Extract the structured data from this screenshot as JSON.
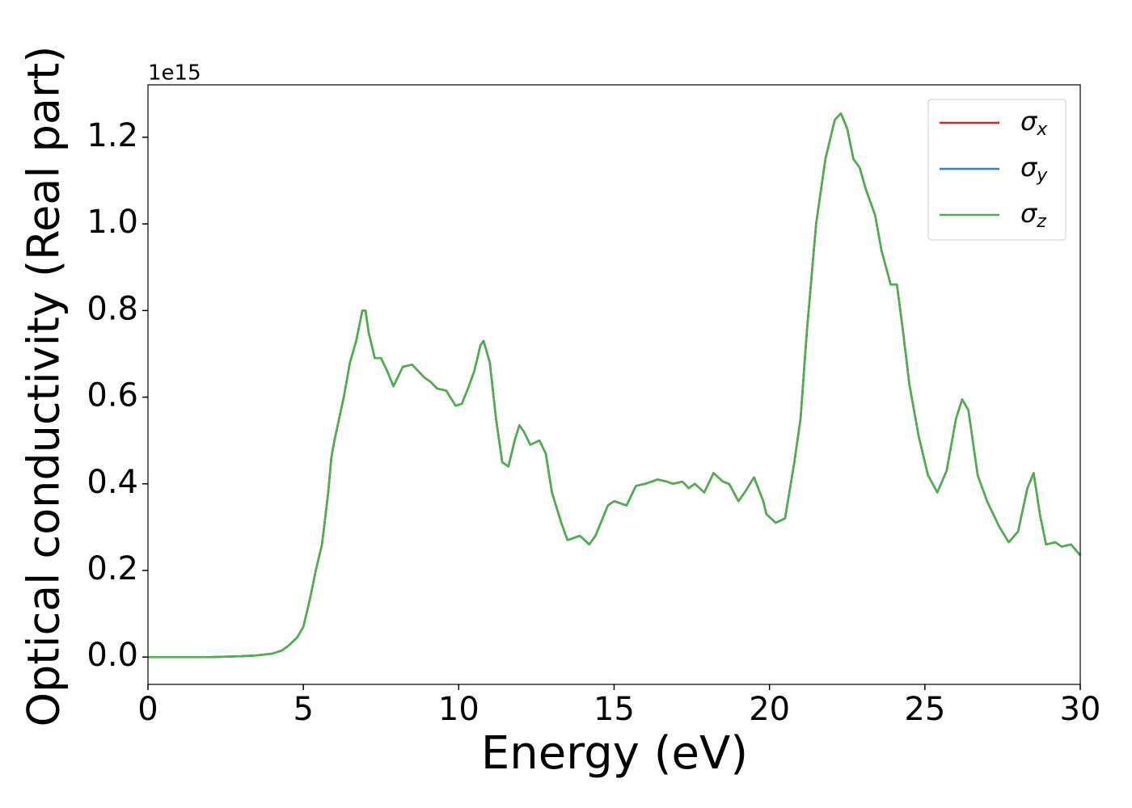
{
  "chart_data": {
    "type": "line",
    "xlabel": "Energy (eV)",
    "ylabel": "Optical conductivity (Real part)",
    "y_offset_label": "1e15",
    "x": [
      0,
      1,
      2,
      3,
      3.5,
      4,
      4.3,
      4.5,
      4.8,
      5,
      5.2,
      5.4,
      5.6,
      5.8,
      5.9,
      6,
      6.3,
      6.5,
      6.7,
      6.9,
      7,
      7.1,
      7.3,
      7.5,
      7.7,
      7.9,
      8,
      8.2,
      8.5,
      8.7,
      8.9,
      9.1,
      9.3,
      9.6,
      9.9,
      10.1,
      10.3,
      10.5,
      10.7,
      10.8,
      11,
      11.2,
      11.4,
      11.6,
      11.8,
      11.95,
      12.1,
      12.3,
      12.6,
      12.8,
      13,
      13.3,
      13.5,
      13.9,
      14.2,
      14.4,
      14.8,
      15,
      15.4,
      15.7,
      16,
      16.4,
      16.7,
      16.9,
      17.2,
      17.4,
      17.6,
      17.9,
      18.2,
      18.5,
      18.7,
      19,
      19.2,
      19.5,
      19.8,
      19.9,
      20.2,
      20.5,
      20.8,
      21,
      21.2,
      21.5,
      21.8,
      22.1,
      22.3,
      22.5,
      22.7,
      22.9,
      23.1,
      23.4,
      23.6,
      23.9,
      24.1,
      24.3,
      24.5,
      24.8,
      25.1,
      25.4,
      25.7,
      26,
      26.2,
      26.4,
      26.7,
      27,
      27.4,
      27.7,
      28,
      28.3,
      28.5,
      28.7,
      28.9,
      29.2,
      29.4,
      29.7,
      30
    ],
    "series": [
      {
        "name": "σx",
        "color": "#d62728",
        "values": [
          0,
          0,
          0,
          0.002,
          0.004,
          0.008,
          0.015,
          0.025,
          0.045,
          0.07,
          0.13,
          0.2,
          0.26,
          0.38,
          0.46,
          0.5,
          0.6,
          0.68,
          0.73,
          0.8,
          0.8,
          0.75,
          0.69,
          0.69,
          0.66,
          0.625,
          0.64,
          0.67,
          0.675,
          0.66,
          0.645,
          0.635,
          0.62,
          0.615,
          0.58,
          0.585,
          0.62,
          0.66,
          0.72,
          0.73,
          0.68,
          0.55,
          0.45,
          0.44,
          0.5,
          0.535,
          0.52,
          0.49,
          0.5,
          0.47,
          0.38,
          0.31,
          0.27,
          0.28,
          0.26,
          0.28,
          0.35,
          0.36,
          0.35,
          0.395,
          0.4,
          0.41,
          0.405,
          0.4,
          0.405,
          0.39,
          0.4,
          0.38,
          0.425,
          0.405,
          0.4,
          0.36,
          0.38,
          0.415,
          0.36,
          0.33,
          0.31,
          0.32,
          0.45,
          0.55,
          0.75,
          1.0,
          1.15,
          1.24,
          1.255,
          1.22,
          1.15,
          1.13,
          1.08,
          1.02,
          0.94,
          0.86,
          0.86,
          0.75,
          0.63,
          0.51,
          0.42,
          0.38,
          0.43,
          0.55,
          0.595,
          0.57,
          0.42,
          0.36,
          0.3,
          0.265,
          0.29,
          0.39,
          0.425,
          0.33,
          0.26,
          0.265,
          0.255,
          0.26,
          0.235
        ]
      },
      {
        "name": "σy",
        "color": "#377eb8",
        "values": [
          0,
          0,
          0,
          0.002,
          0.004,
          0.008,
          0.015,
          0.025,
          0.045,
          0.07,
          0.13,
          0.2,
          0.26,
          0.38,
          0.46,
          0.5,
          0.6,
          0.68,
          0.73,
          0.8,
          0.8,
          0.75,
          0.69,
          0.69,
          0.66,
          0.625,
          0.64,
          0.67,
          0.675,
          0.66,
          0.645,
          0.635,
          0.62,
          0.615,
          0.58,
          0.585,
          0.62,
          0.66,
          0.72,
          0.73,
          0.68,
          0.55,
          0.45,
          0.44,
          0.5,
          0.535,
          0.52,
          0.49,
          0.5,
          0.47,
          0.38,
          0.31,
          0.27,
          0.28,
          0.26,
          0.28,
          0.35,
          0.36,
          0.35,
          0.395,
          0.4,
          0.41,
          0.405,
          0.4,
          0.405,
          0.39,
          0.4,
          0.38,
          0.425,
          0.405,
          0.4,
          0.36,
          0.38,
          0.415,
          0.36,
          0.33,
          0.31,
          0.32,
          0.45,
          0.55,
          0.75,
          1.0,
          1.15,
          1.24,
          1.255,
          1.22,
          1.15,
          1.13,
          1.08,
          1.02,
          0.94,
          0.86,
          0.86,
          0.75,
          0.63,
          0.51,
          0.42,
          0.38,
          0.43,
          0.55,
          0.595,
          0.57,
          0.42,
          0.36,
          0.3,
          0.265,
          0.29,
          0.39,
          0.425,
          0.33,
          0.26,
          0.265,
          0.255,
          0.26,
          0.235
        ]
      },
      {
        "name": "σz",
        "color": "#4daf4a",
        "values": [
          0,
          0,
          0,
          0.002,
          0.004,
          0.008,
          0.015,
          0.025,
          0.045,
          0.07,
          0.13,
          0.2,
          0.26,
          0.38,
          0.46,
          0.5,
          0.6,
          0.68,
          0.73,
          0.8,
          0.8,
          0.75,
          0.69,
          0.69,
          0.66,
          0.625,
          0.64,
          0.67,
          0.675,
          0.66,
          0.645,
          0.635,
          0.62,
          0.615,
          0.58,
          0.585,
          0.62,
          0.66,
          0.72,
          0.73,
          0.68,
          0.55,
          0.45,
          0.44,
          0.5,
          0.535,
          0.52,
          0.49,
          0.5,
          0.47,
          0.38,
          0.31,
          0.27,
          0.28,
          0.26,
          0.28,
          0.35,
          0.36,
          0.35,
          0.395,
          0.4,
          0.41,
          0.405,
          0.4,
          0.405,
          0.39,
          0.4,
          0.38,
          0.425,
          0.405,
          0.4,
          0.36,
          0.38,
          0.415,
          0.36,
          0.33,
          0.31,
          0.32,
          0.45,
          0.55,
          0.75,
          1.0,
          1.15,
          1.24,
          1.255,
          1.22,
          1.15,
          1.13,
          1.08,
          1.02,
          0.94,
          0.86,
          0.86,
          0.75,
          0.63,
          0.51,
          0.42,
          0.38,
          0.43,
          0.55,
          0.595,
          0.57,
          0.42,
          0.36,
          0.3,
          0.265,
          0.29,
          0.39,
          0.425,
          0.33,
          0.26,
          0.265,
          0.255,
          0.26,
          0.235
        ]
      }
    ],
    "xlim": [
      0,
      30
    ],
    "xticks": [
      0,
      5,
      10,
      15,
      20,
      25,
      30
    ],
    "ylim": [
      -0.063,
      1.321
    ],
    "yticks": [
      {
        "value": 0,
        "label": "0.0"
      },
      {
        "value": 0.2,
        "label": "0.2"
      },
      {
        "value": 0.4,
        "label": "0.4"
      },
      {
        "value": 0.6,
        "label": "0.6"
      },
      {
        "value": 0.8,
        "label": "0.8"
      },
      {
        "value": 1,
        "label": "1.0"
      },
      {
        "value": 1.2,
        "label": "1.2"
      }
    ],
    "legend": "upper right",
    "grid": false
  }
}
